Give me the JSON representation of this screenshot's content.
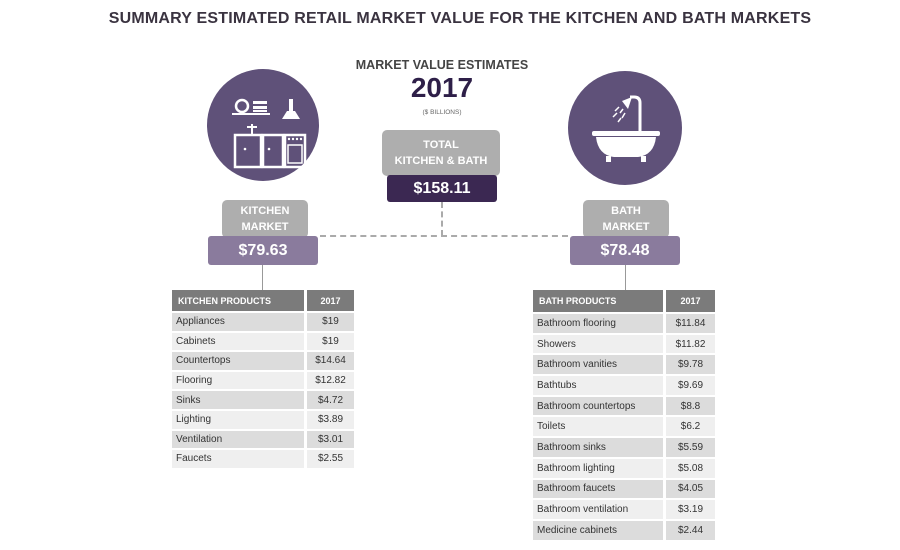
{
  "title": "SUMMARY ESTIMATED RETAIL MARKET VALUE FOR THE KITCHEN AND BATH MARKETS",
  "header": {
    "subtitle": "MARKET VALUE ESTIMATES",
    "year": "2017",
    "units": "($ BILLIONS)"
  },
  "total": {
    "label_line1": "TOTAL",
    "label_line2": "KITCHEN & BATH",
    "value": "$158.11"
  },
  "kitchen": {
    "label_line1": "KITCHEN",
    "label_line2": "MARKET",
    "value": "$79.63",
    "icon": "kitchen-icon"
  },
  "bath": {
    "label_line1": "BATH",
    "label_line2": "MARKET",
    "value": "$78.48",
    "icon": "bathtub-shower-icon"
  },
  "colors": {
    "circle": "#5f5179",
    "dark": "#3b2852",
    "light_purple": "#8a7b9d",
    "gray": "#aeaeae"
  },
  "kitchen_table": {
    "headers": [
      "KITCHEN PRODUCTS",
      "2017"
    ],
    "rows": [
      [
        "Appliances",
        "$19"
      ],
      [
        "Cabinets",
        "$19"
      ],
      [
        "Countertops",
        "$14.64"
      ],
      [
        "Flooring",
        "$12.82"
      ],
      [
        "Sinks",
        "$4.72"
      ],
      [
        "Lighting",
        "$3.89"
      ],
      [
        "Ventilation",
        "$3.01"
      ],
      [
        "Faucets",
        "$2.55"
      ]
    ]
  },
  "bath_table": {
    "headers": [
      "BATH PRODUCTS",
      "2017"
    ],
    "rows": [
      [
        "Bathroom flooring",
        "$11.84"
      ],
      [
        "Showers",
        "$11.82"
      ],
      [
        "Bathroom vanities",
        "$9.78"
      ],
      [
        "Bathtubs",
        "$9.69"
      ],
      [
        "Bathroom countertops",
        "$8.8"
      ],
      [
        "Toilets",
        "$6.2"
      ],
      [
        "Bathroom sinks",
        "$5.59"
      ],
      [
        "Bathroom lighting",
        "$5.08"
      ],
      [
        "Bathroom faucets",
        "$4.05"
      ],
      [
        "Bathroom ventilation",
        "$3.19"
      ],
      [
        "Medicine cabinets",
        "$2.44"
      ]
    ]
  }
}
